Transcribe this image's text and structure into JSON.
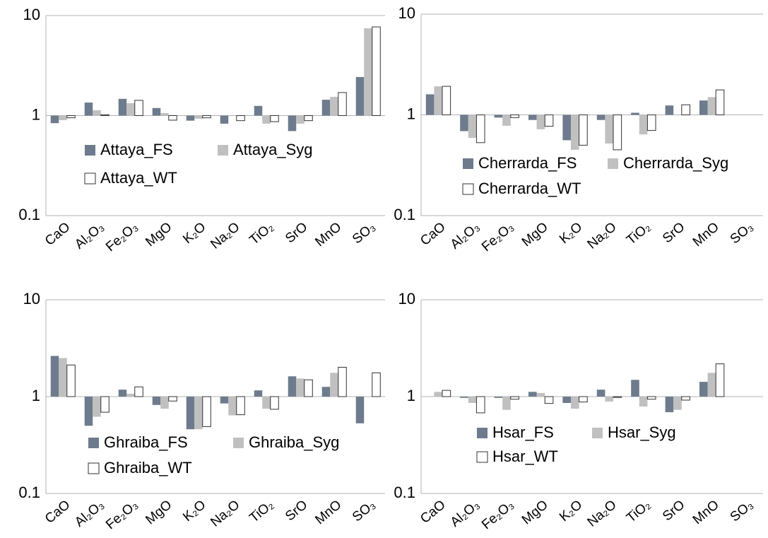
{
  "chart_data": [
    {
      "type": "bar",
      "log_scale": true,
      "grid": true,
      "ylim": [
        0.1,
        10
      ],
      "yticks": [
        0.1,
        1,
        10
      ],
      "categories": [
        "CaO",
        "Al₂O₃",
        "Fe₂O₃",
        "MgO",
        "K₂O",
        "Na₂O",
        "TiO₂",
        "SrO",
        "MnO",
        "SO₃"
      ],
      "series": [
        {
          "name": "Attaya_FS",
          "color": "#6d7b8d",
          "values": [
            0.84,
            1.35,
            1.47,
            1.19,
            0.89,
            0.83,
            1.25,
            0.7,
            1.44,
            2.43
          ]
        },
        {
          "name": "Attaya_Syg",
          "color": "#c0c0c0",
          "values": [
            0.9,
            1.13,
            1.33,
            1.06,
            0.93,
            null,
            0.83,
            0.83,
            1.54,
            7.46
          ]
        },
        {
          "name": "Attaya_WT",
          "color": "#ffffff",
          "values": [
            0.95,
            1.02,
            1.42,
            0.9,
            0.95,
            0.89,
            0.87,
            0.89,
            1.7,
            7.7
          ]
        }
      ]
    },
    {
      "type": "bar",
      "log_scale": true,
      "grid": true,
      "ylim": [
        0.1,
        10
      ],
      "yticks": [
        0.1,
        1,
        10
      ],
      "categories": [
        "CaO",
        "Al₂O₃",
        "Fe₂O₃",
        "MgO",
        "K₂O",
        "Na₂O",
        "TiO₂",
        "SrO",
        "MnO",
        "SO₃"
      ],
      "series": [
        {
          "name": "Cherrarda_FS",
          "color": "#6d7b8d",
          "values": [
            1.6,
            0.69,
            0.94,
            0.89,
            0.56,
            0.89,
            1.05,
            1.24,
            1.39,
            null
          ]
        },
        {
          "name": "Cherrarda_Syg",
          "color": "#c0c0c0",
          "values": [
            1.92,
            0.59,
            0.78,
            0.72,
            0.45,
            0.52,
            0.64,
            null,
            1.5,
            null
          ]
        },
        {
          "name": "Cherrarda_WT",
          "color": "#ffffff",
          "values": [
            1.92,
            0.53,
            0.94,
            0.77,
            0.5,
            0.45,
            0.7,
            1.26,
            1.77,
            null
          ]
        }
      ]
    },
    {
      "type": "bar",
      "log_scale": true,
      "grid": true,
      "ylim": [
        0.1,
        10
      ],
      "yticks": [
        0.1,
        1,
        10
      ],
      "categories": [
        "CaO",
        "Al₂O₃",
        "Fe₂O₃",
        "MgO",
        "K₂O",
        "Na₂O",
        "TiO₂",
        "SrO",
        "MnO",
        "SO₃"
      ],
      "series": [
        {
          "name": "Ghraiba_FS",
          "color": "#6d7b8d",
          "values": [
            2.63,
            0.5,
            1.18,
            0.82,
            0.46,
            0.85,
            1.16,
            1.62,
            1.26,
            0.53
          ]
        },
        {
          "name": "Ghraiba_Syg",
          "color": "#c0c0c0",
          "values": [
            2.5,
            0.62,
            1.07,
            0.75,
            0.46,
            0.64,
            0.75,
            1.54,
            1.76,
            null
          ]
        },
        {
          "name": "Ghraiba_WT",
          "color": "#ffffff",
          "values": [
            2.12,
            0.69,
            1.26,
            0.9,
            0.49,
            0.65,
            0.74,
            1.49,
            2.01,
            1.76
          ]
        }
      ]
    },
    {
      "type": "bar",
      "log_scale": true,
      "grid": true,
      "ylim": [
        0.1,
        10
      ],
      "yticks": [
        0.1,
        1,
        10
      ],
      "categories": [
        "CaO",
        "Al₂O₃",
        "Fe₂O₃",
        "MgO",
        "K₂O",
        "Na₂O",
        "TiO₂",
        "SrO",
        "MnO",
        "SO₃"
      ],
      "series": [
        {
          "name": "Hsar_FS",
          "color": "#6d7b8d",
          "values": [
            null,
            0.97,
            0.97,
            1.12,
            0.86,
            1.18,
            1.49,
            0.69,
            1.42,
            null
          ]
        },
        {
          "name": "Hsar_Syg",
          "color": "#c0c0c0",
          "values": [
            1.12,
            0.86,
            0.73,
            1.09,
            0.75,
            0.89,
            0.79,
            0.73,
            1.76,
            null
          ]
        },
        {
          "name": "Hsar_WT",
          "color": "#ffffff",
          "values": [
            1.16,
            0.68,
            0.94,
            0.85,
            0.88,
            0.98,
            0.94,
            0.92,
            2.18,
            null
          ]
        }
      ]
    }
  ]
}
